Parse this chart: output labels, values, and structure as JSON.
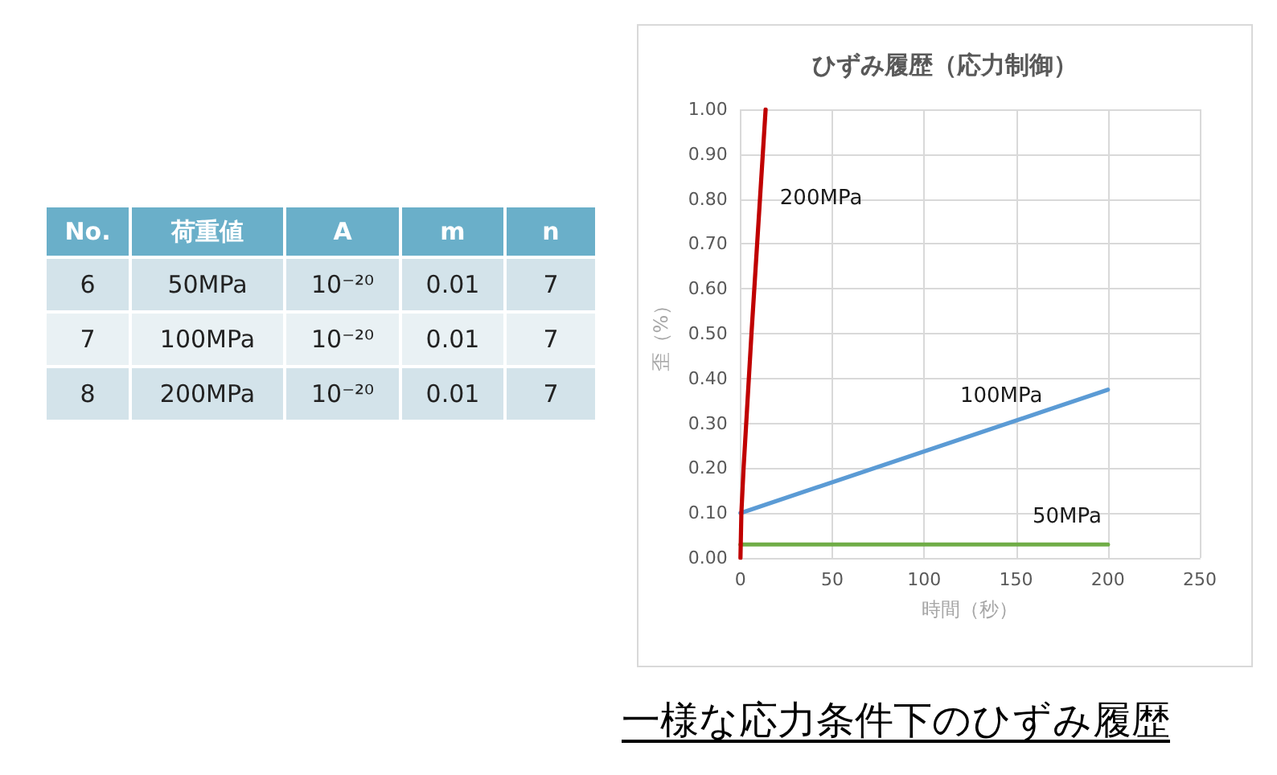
{
  "chart_data": [
    {
      "type": "other",
      "categories": [
        "No.",
        "荷重値",
        "A",
        "m",
        "n"
      ],
      "cell_labels": [
        [
          "6",
          "50MPa",
          "10⁻²⁰",
          "0.01",
          "7"
        ],
        [
          "7",
          "100MPa",
          "10⁻²⁰",
          "0.01",
          "7"
        ],
        [
          "8",
          "200MPa",
          "10⁻²⁰",
          "0.01",
          "7"
        ]
      ]
    },
    {
      "type": "line",
      "title": "ひずみ履歴（応力制御）",
      "xlabel": "時間（秒）",
      "ylabel": "歪（%）",
      "annotations": [
        "一様な応力条件下のひずみ履歴"
      ],
      "xlim": [
        0,
        250
      ],
      "xticks": [
        0,
        50,
        100,
        150,
        200,
        250
      ],
      "ylim": [
        0,
        1
      ],
      "yticks": [
        {
          "value": 0,
          "label": "0.00"
        },
        {
          "value": 0.1,
          "label": "0.10"
        },
        {
          "value": 0.2,
          "label": "0.20"
        },
        {
          "value": 0.3,
          "label": "0.30"
        },
        {
          "value": 0.4,
          "label": "0.40"
        },
        {
          "value": 0.5,
          "label": "0.50"
        },
        {
          "value": 0.6,
          "label": "0.60"
        },
        {
          "value": 0.7,
          "label": "0.70"
        },
        {
          "value": 0.8,
          "label": "0.80"
        },
        {
          "value": 0.9,
          "label": "0.90"
        },
        {
          "value": 1,
          "label": "1.00"
        }
      ],
      "grid": true,
      "marker": "none",
      "series": [
        {
          "name": "50MPa",
          "color": "#70ad47",
          "x": [
            0,
            200
          ],
          "values": [
            0.03,
            0.03
          ]
        },
        {
          "name": "100MPa",
          "color": "#5b9bd5",
          "x": [
            0,
            200
          ],
          "values": [
            0.1,
            0.375
          ]
        },
        {
          "name": "200MPa",
          "color": "#c00000",
          "x": [
            0,
            0.5,
            1.7,
            6,
            13.7
          ],
          "values": [
            0,
            0.1,
            0.2,
            0.5,
            1
          ]
        }
      ]
    }
  ]
}
